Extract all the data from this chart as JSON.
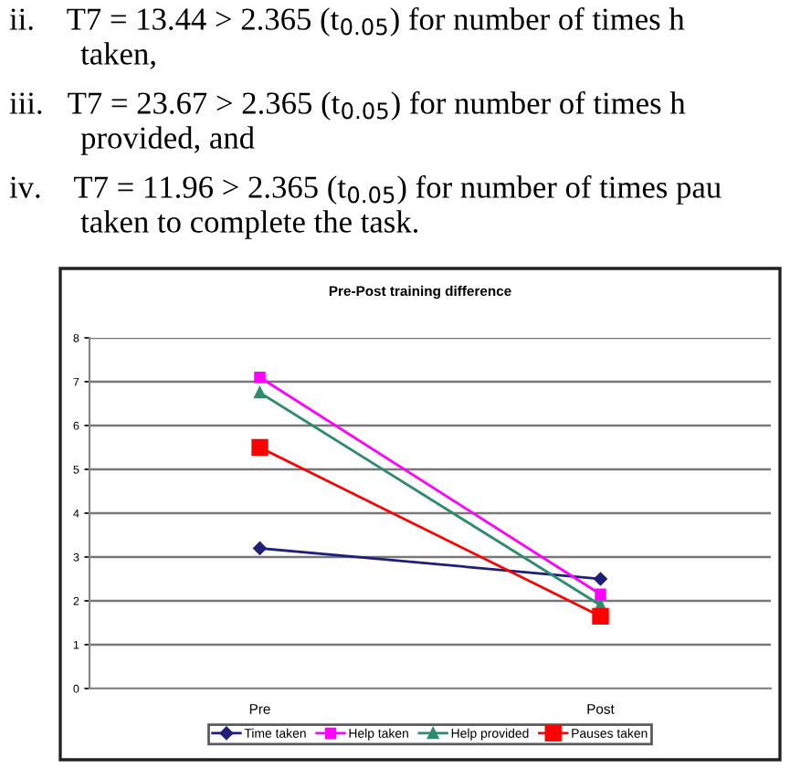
{
  "chart_data": {
    "type": "line",
    "title": "Pre-Post training difference",
    "categories": [
      "Pre",
      "Post"
    ],
    "series": [
      {
        "name": "Time taken",
        "color": "#1f1f7a",
        "values": [
          3.2,
          2.5
        ],
        "marker": "diamond"
      },
      {
        "name": "Help taken",
        "color": "#ff00ff",
        "values": [
          7.1,
          2.15
        ],
        "marker": "square"
      },
      {
        "name": "Help provided",
        "color": "#2e8b6e",
        "values": [
          6.75,
          1.9
        ],
        "marker": "triangle"
      },
      {
        "name": "Pauses taken",
        "color": "#ff0000",
        "values": [
          5.5,
          1.65
        ],
        "marker": "square"
      }
    ],
    "ylim": [
      0,
      8
    ],
    "yticks": [
      0,
      1,
      2,
      3,
      4,
      5,
      6,
      7,
      8
    ],
    "grid": "y",
    "legend": "bottom",
    "line_style": "solid",
    "annotations": [
      "ii.    T7 = 13.44 > 2.365 (t$_{0.05}$) for number of times h\n         taken,",
      "iii.   T7 = 23.67 > 2.365 (t$_{0.05}$) for number of times h\n         provided, and",
      "iv.    T7 = 11.96 > 2.365 (t$_{0.05}$) for number of times pau\n         taken to complete the task."
    ]
  }
}
